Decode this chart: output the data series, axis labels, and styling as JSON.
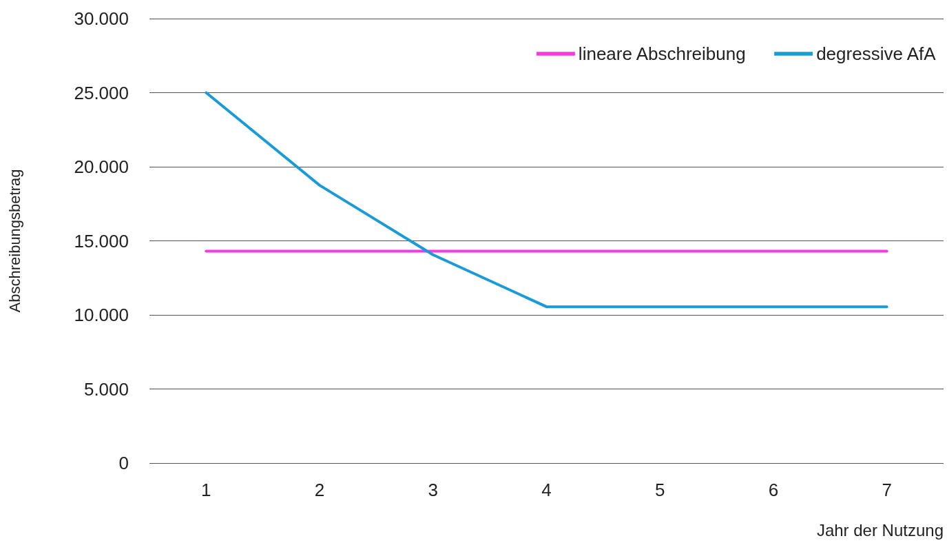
{
  "chart_data": {
    "type": "line",
    "xlabel": "Jahr der Nutzung",
    "ylabel": "Abschreibungsbetrag",
    "categories": [
      "1",
      "2",
      "3",
      "4",
      "5",
      "6",
      "7"
    ],
    "series": [
      {
        "name": "lineare Abschreibung",
        "color": "#f23ce0",
        "values": [
          14300,
          14300,
          14300,
          14300,
          14300,
          14300,
          14300
        ]
      },
      {
        "name": "degressive AfA",
        "color": "#1b9ad6",
        "values": [
          25000,
          18750,
          14060,
          10550,
          10550,
          10550,
          10550
        ]
      }
    ],
    "ylim": [
      0,
      30000
    ],
    "yticks": [
      {
        "value": 0,
        "label": "0"
      },
      {
        "value": 5000,
        "label": "5.000"
      },
      {
        "value": 10000,
        "label": "10.000"
      },
      {
        "value": 15000,
        "label": "15.000"
      },
      {
        "value": 20000,
        "label": "20.000"
      },
      {
        "value": 25000,
        "label": "25.000"
      },
      {
        "value": 30000,
        "label": "30.000"
      }
    ],
    "grid": "y",
    "legend": "top right",
    "marker": "none",
    "line_style": "solid"
  }
}
